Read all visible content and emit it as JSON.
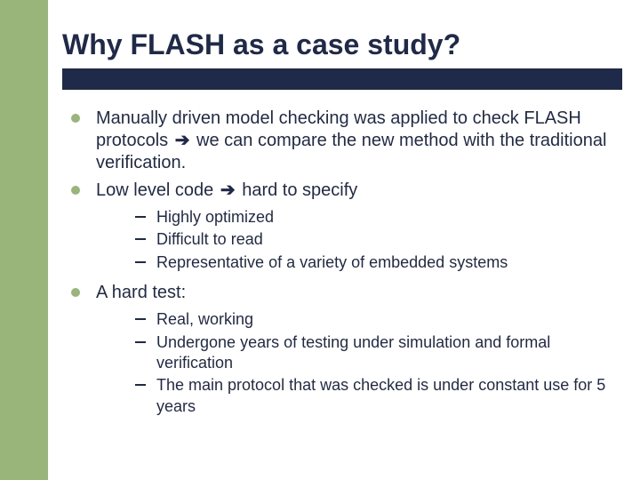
{
  "colors": {
    "sidebar": "#99b57a",
    "title": "#1f2a4a",
    "underline": "#1f2a4a",
    "text": "#1f2a4a",
    "main_bullet": "#99b57a",
    "background": "#ffffff",
    "sub_dash": "#1f2a4a"
  },
  "typography": {
    "title_fontsize": 32,
    "body_fontsize": 20,
    "sub_fontsize": 18,
    "font_family": "Arial",
    "title_weight": "bold"
  },
  "title": "Why FLASH as a case study?",
  "arrow_glyph": "➔",
  "bullets": [
    {
      "pre": "Manually driven model checking was applied to check FLASH protocols ",
      "post": " we can compare the new method with the traditional verification.",
      "has_arrow": true
    },
    {
      "pre": "Low level code ",
      "post": " hard to specify",
      "has_arrow": true,
      "sub": [
        "Highly optimized",
        "Difficult to read",
        "Representative of a variety of embedded systems"
      ]
    },
    {
      "pre": "A hard test:",
      "post": "",
      "has_arrow": false,
      "sub": [
        "Real, working",
        "Undergone years of testing under simulation and formal verification",
        "The main protocol that was checked is under constant use for 5 years"
      ]
    }
  ]
}
